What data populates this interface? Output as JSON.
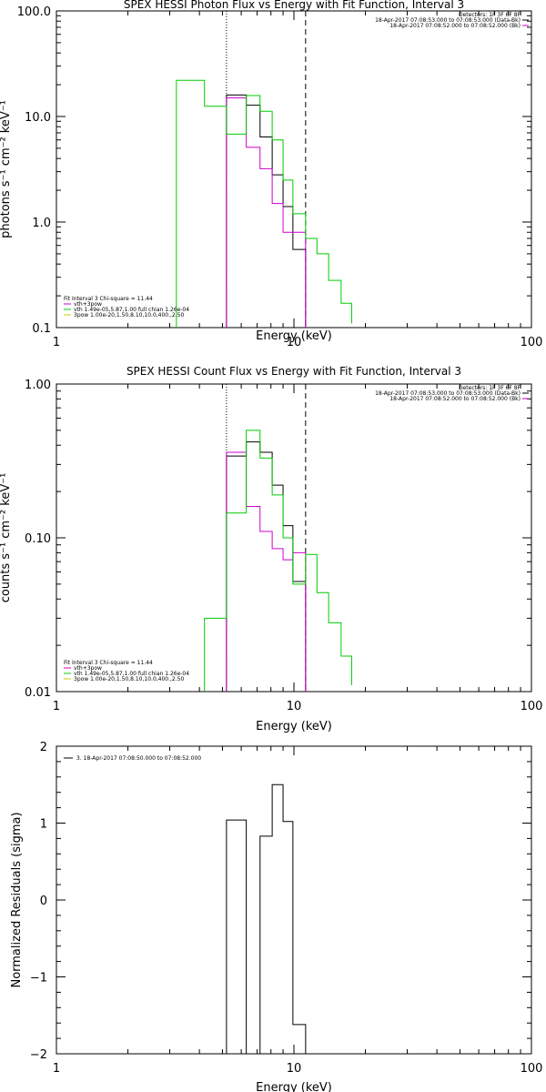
{
  "chart_data": [
    {
      "type": "line",
      "title": "SPEX HESSI Photon Flux vs Energy with Fit Function, Interval 3",
      "xlabel": "Energy (keV)",
      "ylabel": "photons s⁻¹ cm⁻² keV⁻¹",
      "xscale": "log",
      "yscale": "log",
      "xlim": [
        1,
        100
      ],
      "ylim": [
        0.1,
        100
      ],
      "x_ticks": [
        "1",
        "10",
        "100"
      ],
      "y_ticks": [
        "0.1",
        "1.0",
        "10.0",
        "100.0"
      ],
      "grid": false,
      "legend_placement": "bottom-left",
      "legend": [
        "vth+3pow",
        "vth 1.49e-05,5.87,1.00  full chian 1.26e-04",
        "3pow 1.00e-20,1.50,8.10,10.0,400.,2.50"
      ],
      "legend_header": "Fit Interval 3   Chi-square = 11.44",
      "info_top_right": [
        "Detectors: 1F 3F 6F 8F",
        "18-Apr-2017 07:08:53.000 to 07:08:53.000 (Data-Bk)",
        "18-Apr-2017 07:08:52.000 to 07:08:52.000 (Bk)"
      ],
      "vertical_lines": [
        {
          "x": 5.2,
          "style": "dotted"
        },
        {
          "x": 11.2,
          "style": "dashed"
        }
      ],
      "series": [
        {
          "color": "#000000",
          "edges": [
            5.2,
            6.3,
            7.2,
            8.1,
            9.0,
            9.9,
            11.2
          ],
          "values": [
            16.0,
            12.8,
            6.4,
            2.8,
            1.4,
            0.55
          ]
        },
        {
          "color": "#cc00cc",
          "edges": [
            5.2,
            6.3,
            7.2,
            8.1,
            9.0,
            9.9,
            11.2
          ],
          "values": [
            15.0,
            5.1,
            3.2,
            1.5,
            0.8,
            0.8
          ]
        },
        {
          "color": "#00cc00",
          "edges": [
            3.2,
            4.2,
            5.2,
            6.3,
            7.2,
            8.1,
            9.0,
            9.9,
            11.2,
            12.5,
            14.0,
            15.8,
            17.5
          ],
          "values": [
            22.0,
            12.5,
            6.8,
            15.8,
            11.2,
            6.0,
            2.5,
            1.2,
            0.7,
            0.5,
            0.28,
            0.17,
            0.11
          ]
        }
      ]
    },
    {
      "type": "line",
      "title": "SPEX HESSI Count Flux vs Energy with Fit Function, Interval 3",
      "xlabel": "Energy (keV)",
      "ylabel": "counts s⁻¹ cm⁻² keV⁻¹",
      "xscale": "log",
      "yscale": "log",
      "xlim": [
        1,
        100
      ],
      "ylim": [
        0.01,
        1
      ],
      "x_ticks": [
        "1",
        "10",
        "100"
      ],
      "y_ticks": [
        "0.01",
        "0.10",
        "1.00"
      ],
      "grid": false,
      "legend_placement": "bottom-left",
      "legend": [
        "vth+3pow",
        "vth 1.49e-05,5.87,1.00  full chian 1.26e-04",
        "3pow 1.00e-20,1.50,8.10,10.0,400.,2.50"
      ],
      "legend_header": "Fit Interval 3   Chi-square = 11.44",
      "info_top_right": [
        "Detectors: 1F 3F 6F 8F",
        "18-Apr-2017 07:08:53.000 to 07:08:53.000 (Data-Bk)",
        "18-Apr-2017 07:08:52.000 to 07:08:52.000 (Bk)"
      ],
      "vertical_lines": [
        {
          "x": 5.2,
          "style": "dotted"
        },
        {
          "x": 11.2,
          "style": "dashed"
        }
      ],
      "series": [
        {
          "color": "#000000",
          "edges": [
            5.2,
            6.3,
            7.2,
            8.1,
            9.0,
            9.9,
            11.2
          ],
          "values": [
            0.34,
            0.42,
            0.36,
            0.22,
            0.12,
            0.052
          ]
        },
        {
          "color": "#cc00cc",
          "edges": [
            5.2,
            6.3,
            7.2,
            8.1,
            9.0,
            9.9,
            11.2
          ],
          "values": [
            0.36,
            0.16,
            0.11,
            0.085,
            0.072,
            0.08
          ]
        },
        {
          "color": "#00cc00",
          "edges": [
            4.2,
            5.2,
            6.3,
            7.2,
            8.1,
            9.0,
            9.9,
            11.2,
            12.5,
            14.0,
            15.8,
            17.5
          ],
          "values": [
            0.03,
            0.145,
            0.5,
            0.33,
            0.19,
            0.1,
            0.05,
            0.078,
            0.044,
            0.028,
            0.017,
            0.011
          ]
        }
      ]
    },
    {
      "type": "line",
      "xlabel": "Energy (keV)",
      "ylabel": "Normalized Residuals (sigma)",
      "xscale": "log",
      "yscale": "linear",
      "xlim": [
        1,
        100
      ],
      "ylim": [
        -2,
        2
      ],
      "x_ticks": [
        "1",
        "10",
        "100"
      ],
      "y_ticks": [
        "−2",
        "−1",
        "0",
        "1",
        "2"
      ],
      "grid": false,
      "legend_placement": "top-left",
      "legend": [
        "3. 18-Apr-2017 07:08:50.000 to 07:08:52.000"
      ],
      "series": [
        {
          "color": "#000000",
          "edges": [
            5.2,
            6.3,
            7.2,
            8.1,
            9.0,
            9.9,
            11.2
          ],
          "values": [
            1.04,
            -2.0,
            0.83,
            1.5,
            1.02,
            -1.62
          ]
        }
      ]
    }
  ]
}
